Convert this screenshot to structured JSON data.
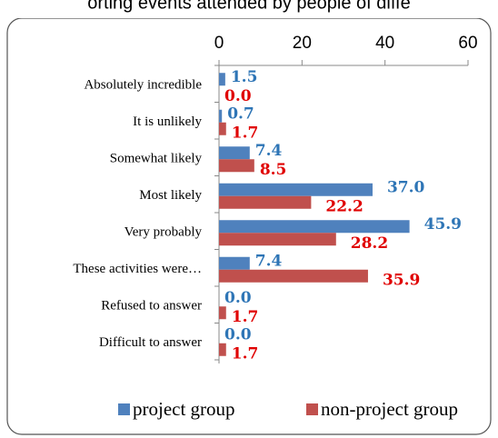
{
  "chart_data": {
    "type": "hbar",
    "title": "orting events attended by people of diffe",
    "categories": [
      "Absolutely incredible",
      "It is unlikely",
      "Somewhat likely",
      "Most likely",
      "Very probably",
      "These activities were…",
      "Refused to answer",
      "Difficult to answer"
    ],
    "series": [
      {
        "name": "project group",
        "color": "#4f81bd",
        "label_color": "#2e75b6",
        "values": [
          1.5,
          0.7,
          7.4,
          37.0,
          45.9,
          7.4,
          0.0,
          0.0
        ],
        "value_labels": [
          "1.5",
          "0.7",
          "7.4",
          "37.0",
          "45.9",
          "7.4",
          "0.0",
          "0.0"
        ]
      },
      {
        "name": "non-project group",
        "color": "#c0504d",
        "label_color": "#e00000",
        "values": [
          0.0,
          1.7,
          8.5,
          22.2,
          28.2,
          35.9,
          1.7,
          1.7
        ],
        "value_labels": [
          "0.0",
          "1.7",
          "8.5",
          "22.2",
          "28.2",
          "35.9",
          "1.7",
          "1.7"
        ]
      }
    ],
    "xlim": [
      0,
      60
    ],
    "xticks": [
      0,
      20,
      40,
      60
    ],
    "grid": false
  }
}
